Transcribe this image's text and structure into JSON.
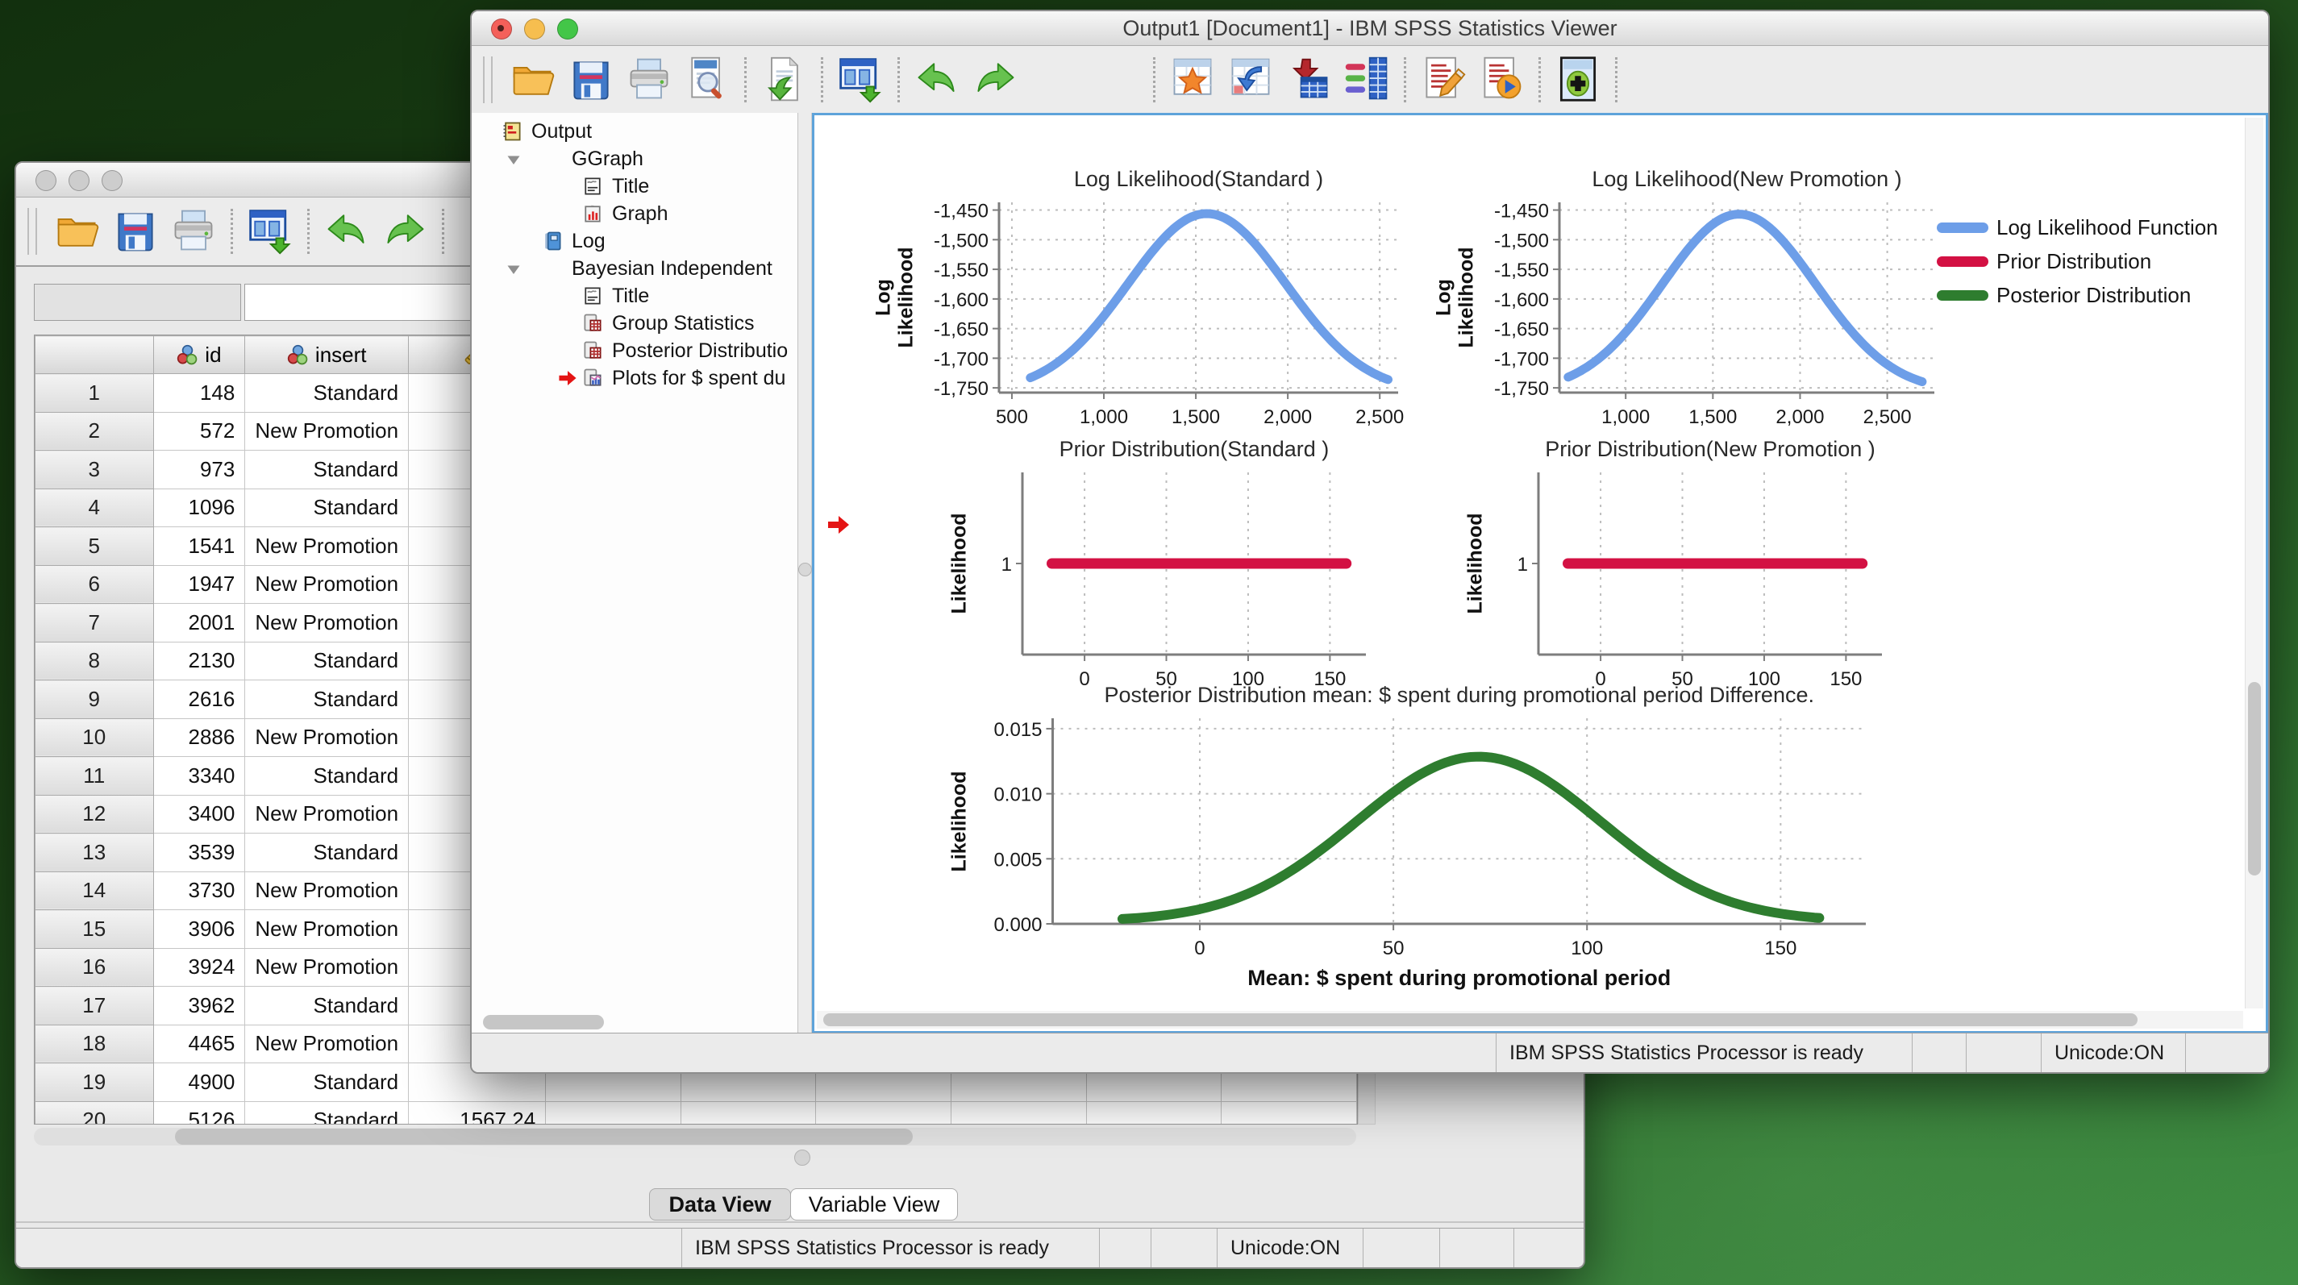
{
  "colors": {
    "series_blue": "#6d9ee8",
    "series_red": "#d31143",
    "series_green": "#2e7d2f",
    "content_focus_border": "#5ea3da"
  },
  "viewer": {
    "title": "Output1 [Document1] - IBM SPSS Statistics Viewer",
    "window_controls": [
      "close",
      "minimize",
      "zoom"
    ],
    "toolbar": [
      "open-file",
      "save",
      "print",
      "print-preview",
      "sep",
      "export",
      "sep",
      "recall-dialogs",
      "sep",
      "undo",
      "redo",
      "gap",
      "sep",
      "favorite-table",
      "goto-data",
      "goto-case",
      "variables",
      "sep",
      "syntax",
      "run",
      "sep",
      "select-last-output",
      "sep"
    ],
    "tree": [
      {
        "icon": "output-book-icon",
        "label": "Output",
        "depth": 0
      },
      {
        "icon": "heading-book-icon",
        "label": "GGraph",
        "depth": 1,
        "disclosure": "open"
      },
      {
        "icon": "title-page-icon",
        "label": "Title",
        "depth": 2
      },
      {
        "icon": "graph-page-icon",
        "label": "Graph",
        "depth": 2
      },
      {
        "icon": "log-icon",
        "label": "Log",
        "depth": 1
      },
      {
        "icon": "heading-book-icon",
        "label": "Bayesian Independent",
        "depth": 1,
        "disclosure": "open"
      },
      {
        "icon": "title-page-icon",
        "label": "Title",
        "depth": 2
      },
      {
        "icon": "table-page-icon",
        "label": "Group Statistics",
        "depth": 2
      },
      {
        "icon": "table-page-icon",
        "label": "Posterior Distributio",
        "depth": 2
      },
      {
        "icon": "plots-page-icon",
        "label": "Plots for $ spent du",
        "depth": 2,
        "marker": true
      }
    ],
    "status_processor": "IBM SPSS Statistics Processor is ready",
    "status_unicode": "Unicode:ON"
  },
  "editor": {
    "toolbar": [
      "open-file",
      "save",
      "print",
      "sep",
      "recall-dialogs",
      "sep",
      "undo",
      "redo",
      "sep"
    ],
    "cell_reference": "",
    "cell_editor": "",
    "table": {
      "columns": [
        {
          "label": "",
          "icon": ""
        },
        {
          "label": "id",
          "icon": "nominal-icon"
        },
        {
          "label": "insert",
          "icon": "nominal-icon"
        },
        {
          "label": "",
          "icon": "scale-icon"
        }
      ],
      "rows": [
        [
          1,
          "148",
          "Standard",
          ""
        ],
        [
          2,
          "572",
          "New Promotion",
          ""
        ],
        [
          3,
          "973",
          "Standard",
          ""
        ],
        [
          4,
          "1096",
          "Standard",
          ""
        ],
        [
          5,
          "1541",
          "New Promotion",
          ""
        ],
        [
          6,
          "1947",
          "New Promotion",
          ""
        ],
        [
          7,
          "2001",
          "New Promotion",
          ""
        ],
        [
          8,
          "2130",
          "Standard",
          ""
        ],
        [
          9,
          "2616",
          "Standard",
          ""
        ],
        [
          10,
          "2886",
          "New Promotion",
          ""
        ],
        [
          11,
          "3340",
          "Standard",
          ""
        ],
        [
          12,
          "3400",
          "New Promotion",
          ""
        ],
        [
          13,
          "3539",
          "Standard",
          ""
        ],
        [
          14,
          "3730",
          "New Promotion",
          ""
        ],
        [
          15,
          "3906",
          "New Promotion",
          ""
        ],
        [
          16,
          "3924",
          "New Promotion",
          ""
        ],
        [
          17,
          "3962",
          "Standard",
          ""
        ],
        [
          18,
          "4465",
          "New Promotion",
          ""
        ],
        [
          19,
          "4900",
          "Standard",
          ""
        ],
        [
          20,
          "5126",
          "Standard",
          "1567.24"
        ]
      ]
    },
    "tabs": [
      {
        "label": "Data View",
        "active": true
      },
      {
        "label": "Variable View",
        "active": false
      }
    ],
    "status_processor": "IBM SPSS Statistics Processor is ready",
    "status_unicode": "Unicode:ON"
  },
  "legend": {
    "entries": [
      {
        "label": "Log Likelihood Function",
        "color": "series_blue"
      },
      {
        "label": "Prior Distribution",
        "color": "series_red"
      },
      {
        "label": "Posterior Distribution",
        "color": "series_green"
      }
    ]
  },
  "chart_data": [
    {
      "type": "line",
      "title": "Log Likelihood(Standard )",
      "ylabel": "Log\nLikelihood",
      "xlabel": "",
      "x_ticks": {
        "values": [
          500,
          1000,
          1500,
          2000,
          2500
        ],
        "labels": [
          "500",
          "1,000",
          "1,500",
          "2,000",
          "2,500"
        ]
      },
      "y_ticks": {
        "values": [
          -1450,
          -1500,
          -1550,
          -1600,
          -1650,
          -1700,
          -1750
        ],
        "labels": [
          "-1,450",
          "-1,500",
          "-1,550",
          "-1,600",
          "-1,650",
          "-1,700",
          "-1,750"
        ]
      },
      "x_range": [
        430,
        2600
      ],
      "y_range": [
        -1758,
        -1437
      ],
      "grid_x": true,
      "grid_y": true,
      "series": [
        {
          "name": "Log Likelihood Function",
          "color": "series_blue",
          "stroke_width": 11,
          "curve": {
            "kind": "gaussian",
            "mu": 1560,
            "sigma": 430,
            "amp": 302,
            "base": -1758
          },
          "x_data": [
            600,
            2545
          ]
        }
      ]
    },
    {
      "type": "line",
      "title": "Log Likelihood(New Promotion )",
      "ylabel": "Log\nLikelihood",
      "xlabel": "",
      "x_ticks": {
        "values": [
          1000,
          1500,
          2000,
          2500
        ],
        "labels": [
          "1,000",
          "1,500",
          "2,000",
          "2,500"
        ]
      },
      "y_ticks": {
        "values": [
          -1450,
          -1500,
          -1550,
          -1600,
          -1650,
          -1700,
          -1750
        ],
        "labels": [
          "-1,450",
          "-1,500",
          "-1,550",
          "-1,600",
          "-1,650",
          "-1,700",
          "-1,750"
        ]
      },
      "x_range": [
        620,
        2770
      ],
      "y_range": [
        -1758,
        -1437
      ],
      "grid_x": true,
      "grid_y": true,
      "series": [
        {
          "name": "Log Likelihood Function",
          "color": "series_blue",
          "stroke_width": 11,
          "curve": {
            "kind": "gaussian",
            "mu": 1650,
            "sigma": 440,
            "amp": 300,
            "base": -1757
          },
          "x_data": [
            670,
            2700
          ]
        }
      ]
    },
    {
      "type": "line",
      "title": "Prior Distribution(Standard )",
      "ylabel": "Likelihood",
      "xlabel": "",
      "x_ticks": {
        "values": [
          0,
          50,
          100,
          150
        ],
        "labels": [
          "0",
          "50",
          "100",
          "150"
        ]
      },
      "y_ticks": {
        "values": [
          1
        ],
        "labels": [
          "1"
        ]
      },
      "x_range": [
        -38,
        172
      ],
      "y_range": [
        0,
        2
      ],
      "grid_x": true,
      "grid_y": false,
      "series": [
        {
          "name": "Prior Distribution",
          "color": "series_red",
          "stroke_width": 13,
          "curve": {
            "kind": "flat",
            "value": 1
          },
          "x_data": [
            -20,
            160
          ]
        }
      ]
    },
    {
      "type": "line",
      "title": "Prior Distribution(New Promotion )",
      "ylabel": "Likelihood",
      "xlabel": "",
      "x_ticks": {
        "values": [
          0,
          50,
          100,
          150
        ],
        "labels": [
          "0",
          "50",
          "100",
          "150"
        ]
      },
      "y_ticks": {
        "values": [
          1
        ],
        "labels": [
          "1"
        ]
      },
      "x_range": [
        -38,
        172
      ],
      "y_range": [
        0,
        2
      ],
      "grid_x": true,
      "grid_y": false,
      "series": [
        {
          "name": "Prior Distribution",
          "color": "series_red",
          "stroke_width": 13,
          "curve": {
            "kind": "flat",
            "value": 1
          },
          "x_data": [
            -20,
            160
          ]
        }
      ]
    },
    {
      "type": "line",
      "title": "Posterior Distribution mean: $ spent during promotional period Difference.",
      "ylabel": "Likelihood",
      "xlabel": "Mean: $ spent during promotional period",
      "x_ticks": {
        "values": [
          0,
          50,
          100,
          150
        ],
        "labels": [
          "0",
          "50",
          "100",
          "150"
        ]
      },
      "y_ticks": {
        "values": [
          0,
          0.005,
          0.01,
          0.015
        ],
        "labels": [
          "0.000",
          "0.005",
          "0.010",
          "0.015"
        ]
      },
      "x_range": [
        -38,
        172
      ],
      "y_range": [
        0,
        0.0158
      ],
      "grid_x": true,
      "grid_y": true,
      "series": [
        {
          "name": "Posterior Distribution",
          "color": "series_green",
          "stroke_width": 12,
          "curve": {
            "kind": "gaussian",
            "mu": 72,
            "sigma": 31.5,
            "amp": 0.01265,
            "base": 0.0002
          },
          "x_data": [
            -20,
            160
          ]
        }
      ]
    }
  ]
}
